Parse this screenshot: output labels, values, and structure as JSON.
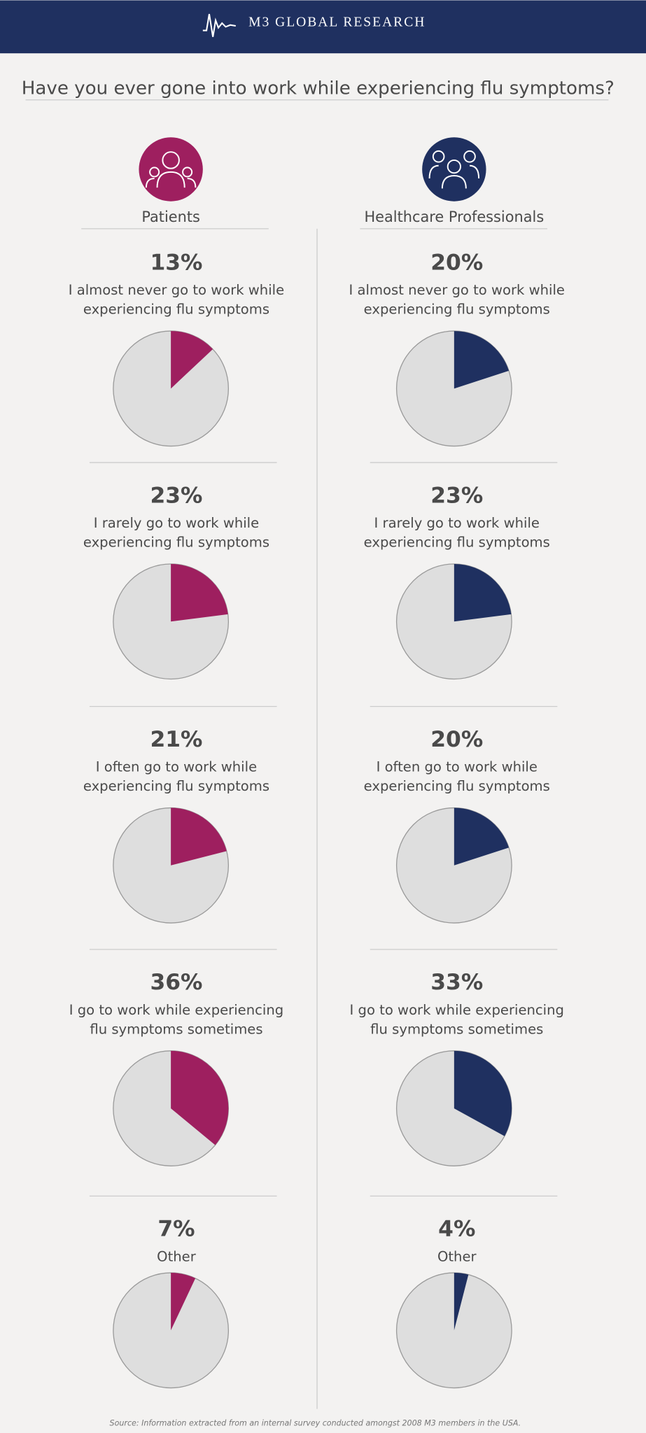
{
  "header": {
    "brand": "M3 GLOBAL RESEARCH"
  },
  "title": "Have you ever gone into work while experiencing flu symptoms?",
  "columns": [
    {
      "name": "Patients",
      "color": "#9e1f5f"
    },
    {
      "name": "Healthcare Professionals",
      "color": "#1f3060"
    }
  ],
  "source": "Source: Information extracted from an internal survey conducted amongst 2008 M3 members in the USA.",
  "chart_data": [
    {
      "type": "pie",
      "title": [
        "I almost never go to work while",
        "experiencing flu symptoms"
      ],
      "values": [
        13
      ],
      "value_labels": [
        "13%"
      ],
      "color": "#9e1f5f"
    },
    {
      "type": "pie",
      "title": [
        "I rarely go to work while",
        "experiencing flu symptoms"
      ],
      "values": [
        23
      ],
      "value_labels": [
        "23%"
      ],
      "color": "#9e1f5f"
    },
    {
      "type": "pie",
      "title": [
        "I often go to work while",
        "experiencing flu symptoms"
      ],
      "values": [
        21
      ],
      "value_labels": [
        "21%"
      ],
      "color": "#9e1f5f"
    },
    {
      "type": "pie",
      "title": [
        "I go to work while experiencing",
        "flu symptoms sometimes"
      ],
      "values": [
        36
      ],
      "value_labels": [
        "36%"
      ],
      "color": "#9e1f5f"
    },
    {
      "type": "pie",
      "title": [
        "Other"
      ],
      "values": [
        7
      ],
      "value_labels": [
        "7%"
      ],
      "color": "#9e1f5f"
    },
    {
      "type": "pie",
      "title": [
        "I almost never go to work while",
        "experiencing flu symptoms"
      ],
      "values": [
        20
      ],
      "value_labels": [
        "20%"
      ],
      "color": "#1f3060"
    },
    {
      "type": "pie",
      "title": [
        "I rarely go to work while",
        "experiencing flu symptoms"
      ],
      "values": [
        23
      ],
      "value_labels": [
        "23%"
      ],
      "color": "#1f3060"
    },
    {
      "type": "pie",
      "title": [
        "I often go to work while",
        "experiencing flu symptoms"
      ],
      "values": [
        20
      ],
      "value_labels": [
        "20%"
      ],
      "color": "#1f3060"
    },
    {
      "type": "pie",
      "title": [
        "I go to work while experiencing",
        "flu symptoms sometimes"
      ],
      "values": [
        33
      ],
      "value_labels": [
        "33%"
      ],
      "color": "#1f3060"
    },
    {
      "type": "pie",
      "title": [
        "Other"
      ],
      "values": [
        4
      ],
      "value_labels": [
        "4%"
      ],
      "color": "#1f3060"
    }
  ]
}
